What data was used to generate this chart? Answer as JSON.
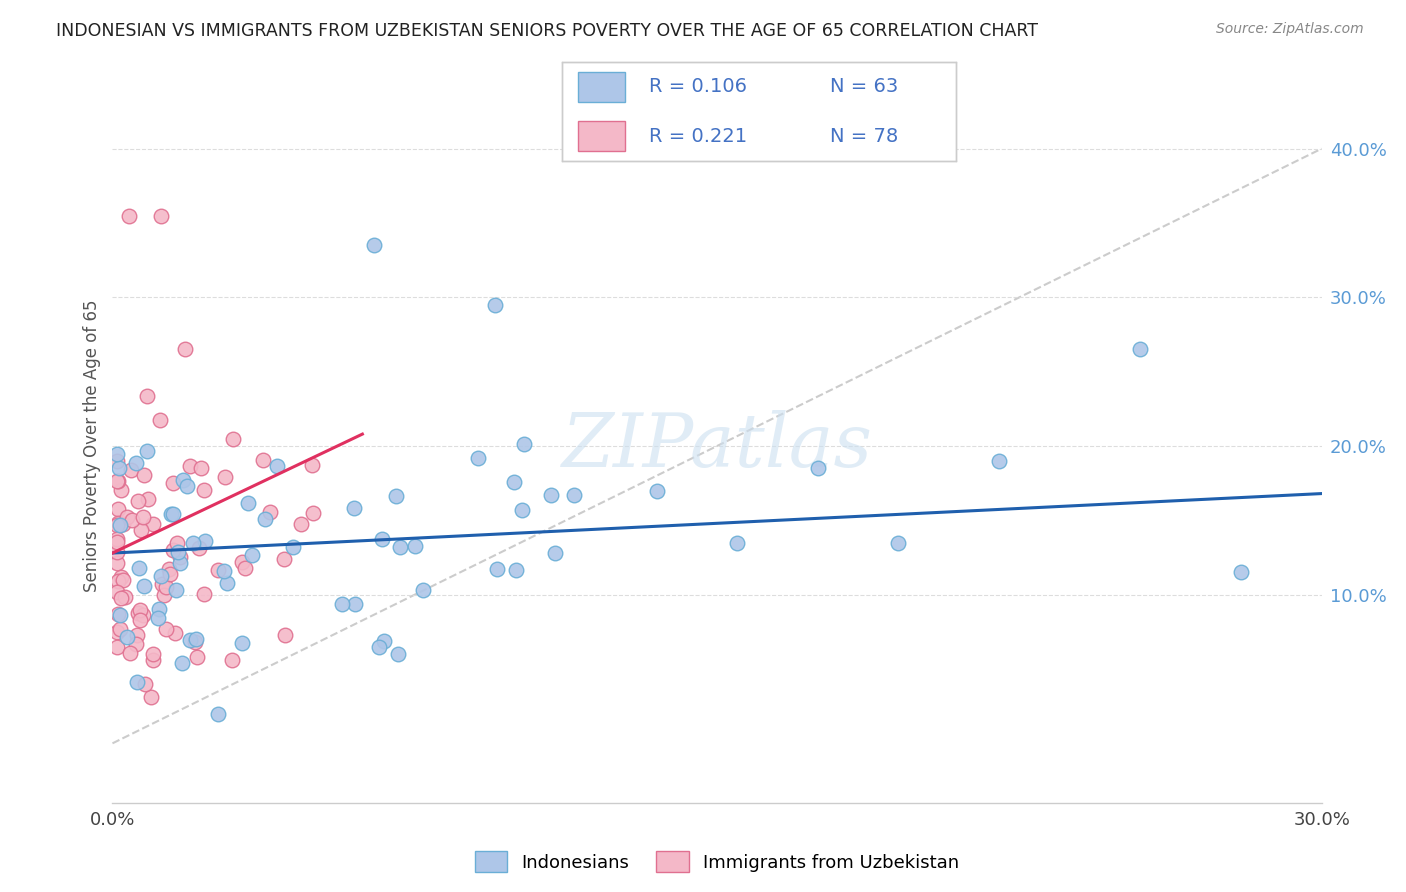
{
  "title": "INDONESIAN VS IMMIGRANTS FROM UZBEKISTAN SENIORS POVERTY OVER THE AGE OF 65 CORRELATION CHART",
  "source": "Source: ZipAtlas.com",
  "ylabel": "Seniors Poverty Over the Age of 65",
  "xlim": [
    0.0,
    0.3
  ],
  "ylim": [
    -0.04,
    0.44
  ],
  "legend_R1": "R = 0.106",
  "legend_N1": "N = 63",
  "legend_R2": "R = 0.221",
  "legend_N2": "N = 78",
  "color_blue": "#aec6e8",
  "color_blue_edge": "#6aaed6",
  "color_pink": "#f4b8c8",
  "color_pink_edge": "#e07090",
  "color_trendline_blue": "#1f5fad",
  "color_trendline_pink": "#e03060",
  "color_diagonal": "#cccccc",
  "color_legend_text": "#4472c4",
  "watermark": "ZIPatlas",
  "blue_trendline_x0": 0.0,
  "blue_trendline_y0": 0.128,
  "blue_trendline_x1": 0.3,
  "blue_trendline_y1": 0.168,
  "pink_trendline_x0": 0.0,
  "pink_trendline_y0": 0.128,
  "pink_trendline_x1": 0.062,
  "pink_trendline_y1": 0.208
}
